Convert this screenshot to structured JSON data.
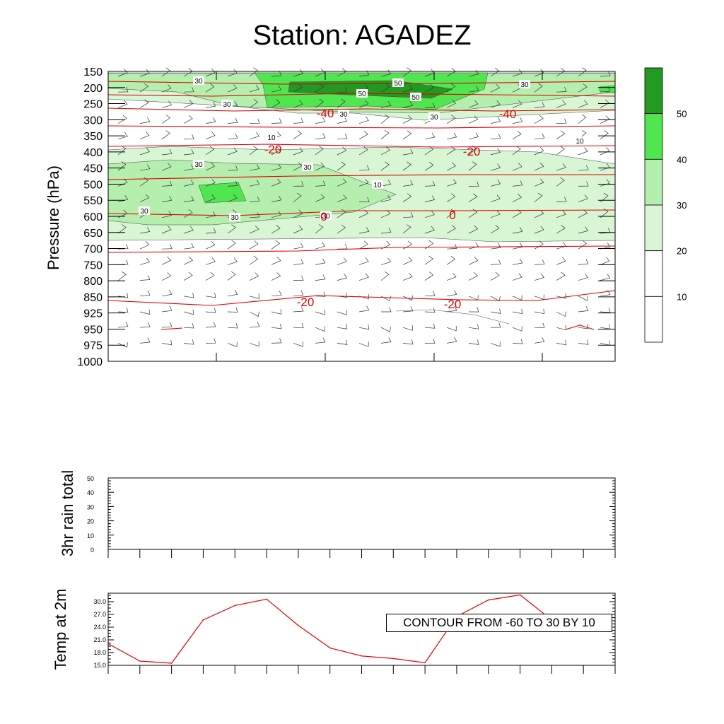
{
  "title": "Station: AGADEZ",
  "colors": {
    "temp_line": "#e00000",
    "level_10": "#ffffff",
    "level_20": "#d8f5d4",
    "level_30": "#b5efae",
    "level_40": "#4fe64f",
    "level_50": "#229a22"
  },
  "chart_data": [
    {
      "id": "wind-cross-section",
      "type": "heatmap",
      "title": "Station: AGADEZ",
      "ylabel": "Pressure (hPa)",
      "y_reversed": true,
      "y_ticks": [
        "150",
        "200",
        "250",
        "300",
        "350",
        "400",
        "450",
        "500",
        "550",
        "600",
        "650",
        "700",
        "750",
        "800",
        "850",
        "925",
        "950",
        "975",
        "1000"
      ],
      "colorbar": {
        "levels": [
          "10",
          "20",
          "30",
          "40",
          "50"
        ]
      },
      "wind_speed_labels": [
        "30",
        "50",
        "50",
        "50",
        "30",
        "30",
        "30",
        "30",
        "10",
        "10",
        "30",
        "30",
        "30",
        "30",
        "30",
        "10"
      ],
      "temperature_labels": [
        "-40",
        "-40",
        "-20",
        "-20",
        "0",
        "0",
        "-20",
        "-20"
      ]
    },
    {
      "id": "rain",
      "type": "line",
      "ylabel": "3hr rain total",
      "ylim": [
        0,
        50
      ],
      "y_ticks": [
        "0",
        "10",
        "20",
        "30",
        "40",
        "50"
      ],
      "values": []
    },
    {
      "id": "temp2m",
      "type": "line",
      "ylabel": "Temp at 2m",
      "ylim": [
        15,
        32
      ],
      "y_ticks": [
        "15.0",
        "18.0",
        "21.0",
        "24.0",
        "27.0",
        "30.0"
      ],
      "values": [
        20.1,
        16.0,
        15.5,
        25.7,
        29.1,
        30.6,
        24.4,
        19.1,
        17.2,
        16.6,
        15.6,
        26.5,
        30.4,
        31.6,
        25.7
      ],
      "annotation": "CONTOUR FROM -60 TO 30 BY 10"
    }
  ]
}
